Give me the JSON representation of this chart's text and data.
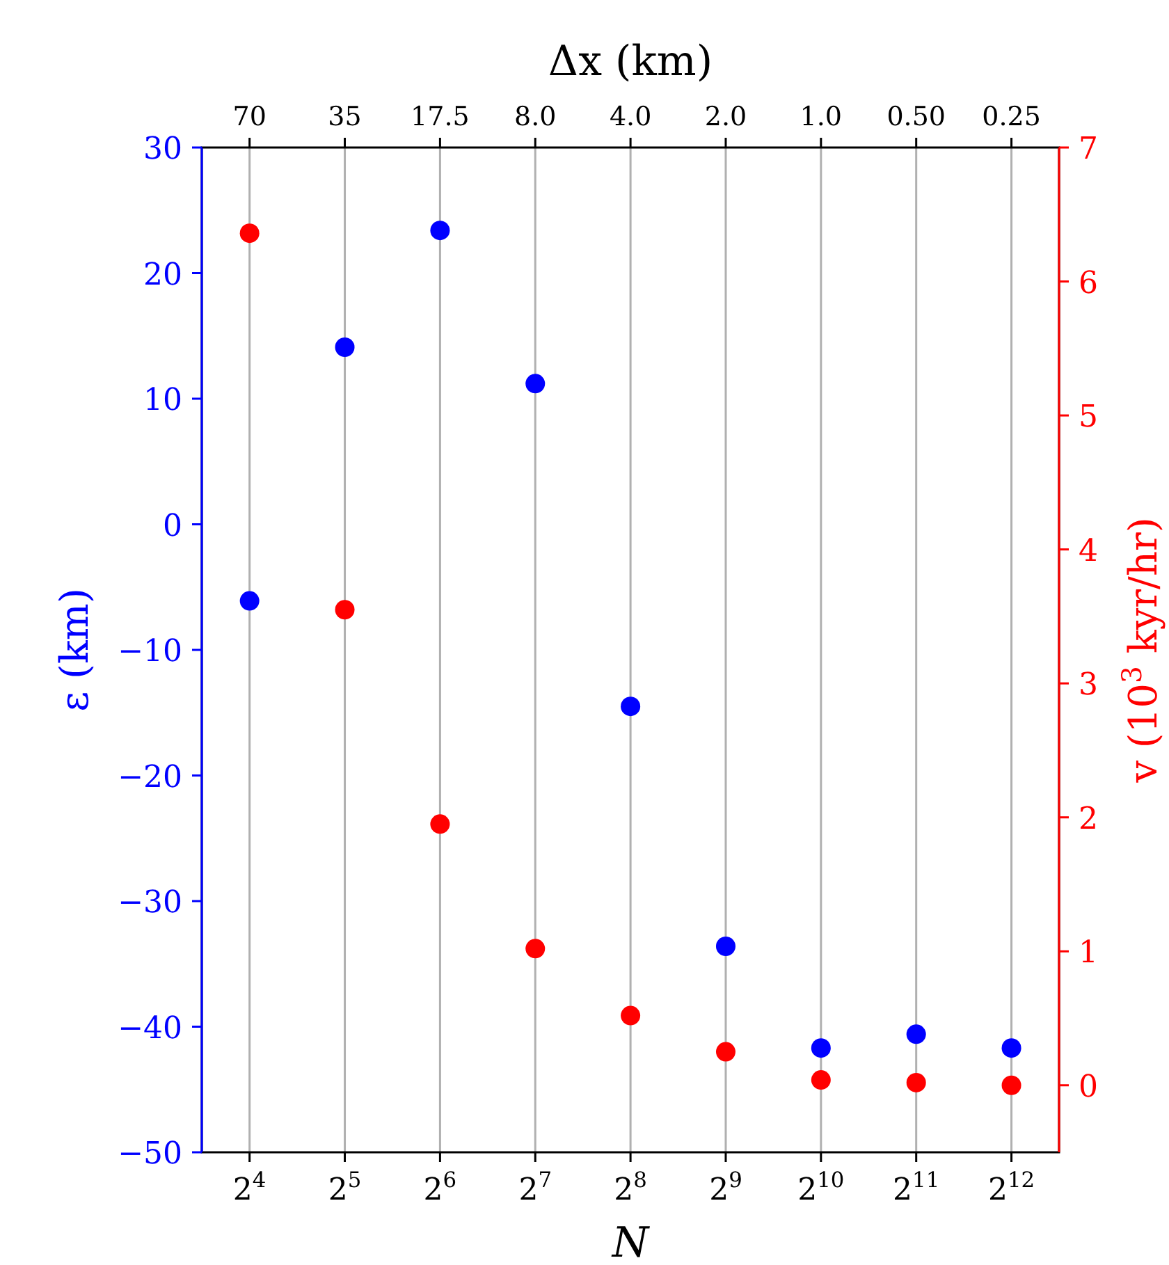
{
  "chart_data": {
    "type": "scatter",
    "xlabel": "N",
    "x2label": "Δx (km)",
    "ylabel": "ε (km)",
    "y2label": "v (10$^{3}$ kyr/hr)",
    "log": "x",
    "grid": "x",
    "marker": "circle",
    "x": [
      16,
      32,
      64,
      128,
      256,
      512,
      1024,
      2048,
      4096
    ],
    "xlim": [
      11.3,
      5793
    ],
    "xticks": [
      {
        "value": 16,
        "label": "2$^{4}$"
      },
      {
        "value": 32,
        "label": "2$^{5}$"
      },
      {
        "value": 64,
        "label": "2$^{6}$"
      },
      {
        "value": 128,
        "label": "2$^{7}$"
      },
      {
        "value": 256,
        "label": "2$^{8}$"
      },
      {
        "value": 512,
        "label": "2$^{9}$"
      },
      {
        "value": 1024,
        "label": "2$^{10}$"
      },
      {
        "value": 2048,
        "label": "2$^{11}$"
      },
      {
        "value": 4096,
        "label": "2$^{12}$"
      }
    ],
    "annotations": [
      {
        "text": "70",
        "x": 16
      },
      {
        "text": "35",
        "x": 32
      },
      {
        "text": "17.5",
        "x": 64
      },
      {
        "text": "8.0",
        "x": 128
      },
      {
        "text": "4.0",
        "x": 256
      },
      {
        "text": "2.0",
        "x": 512
      },
      {
        "text": "1.0",
        "x": 1024
      },
      {
        "text": "0.50",
        "x": 2048
      },
      {
        "text": "0.25",
        "x": 4096
      }
    ],
    "ylim": [
      -50,
      30
    ],
    "yticks": [
      -50,
      -40,
      -30,
      -20,
      -10,
      0,
      10,
      20,
      30
    ],
    "y2lim": [
      -0.5,
      7
    ],
    "y2ticks": [
      0,
      1,
      2,
      3,
      4,
      5,
      6,
      7
    ],
    "series": [
      {
        "color": "#0000ff",
        "axis": "y",
        "values": [
          -6.1,
          14.1,
          23.4,
          11.2,
          -14.5,
          -33.6,
          -41.7,
          -40.6,
          -41.7
        ]
      },
      {
        "color": "#ff0000",
        "axis": "y2",
        "values": [
          6.36,
          3.55,
          1.95,
          1.02,
          0.52,
          0.25,
          0.04,
          0.02,
          0.0
        ]
      }
    ]
  }
}
